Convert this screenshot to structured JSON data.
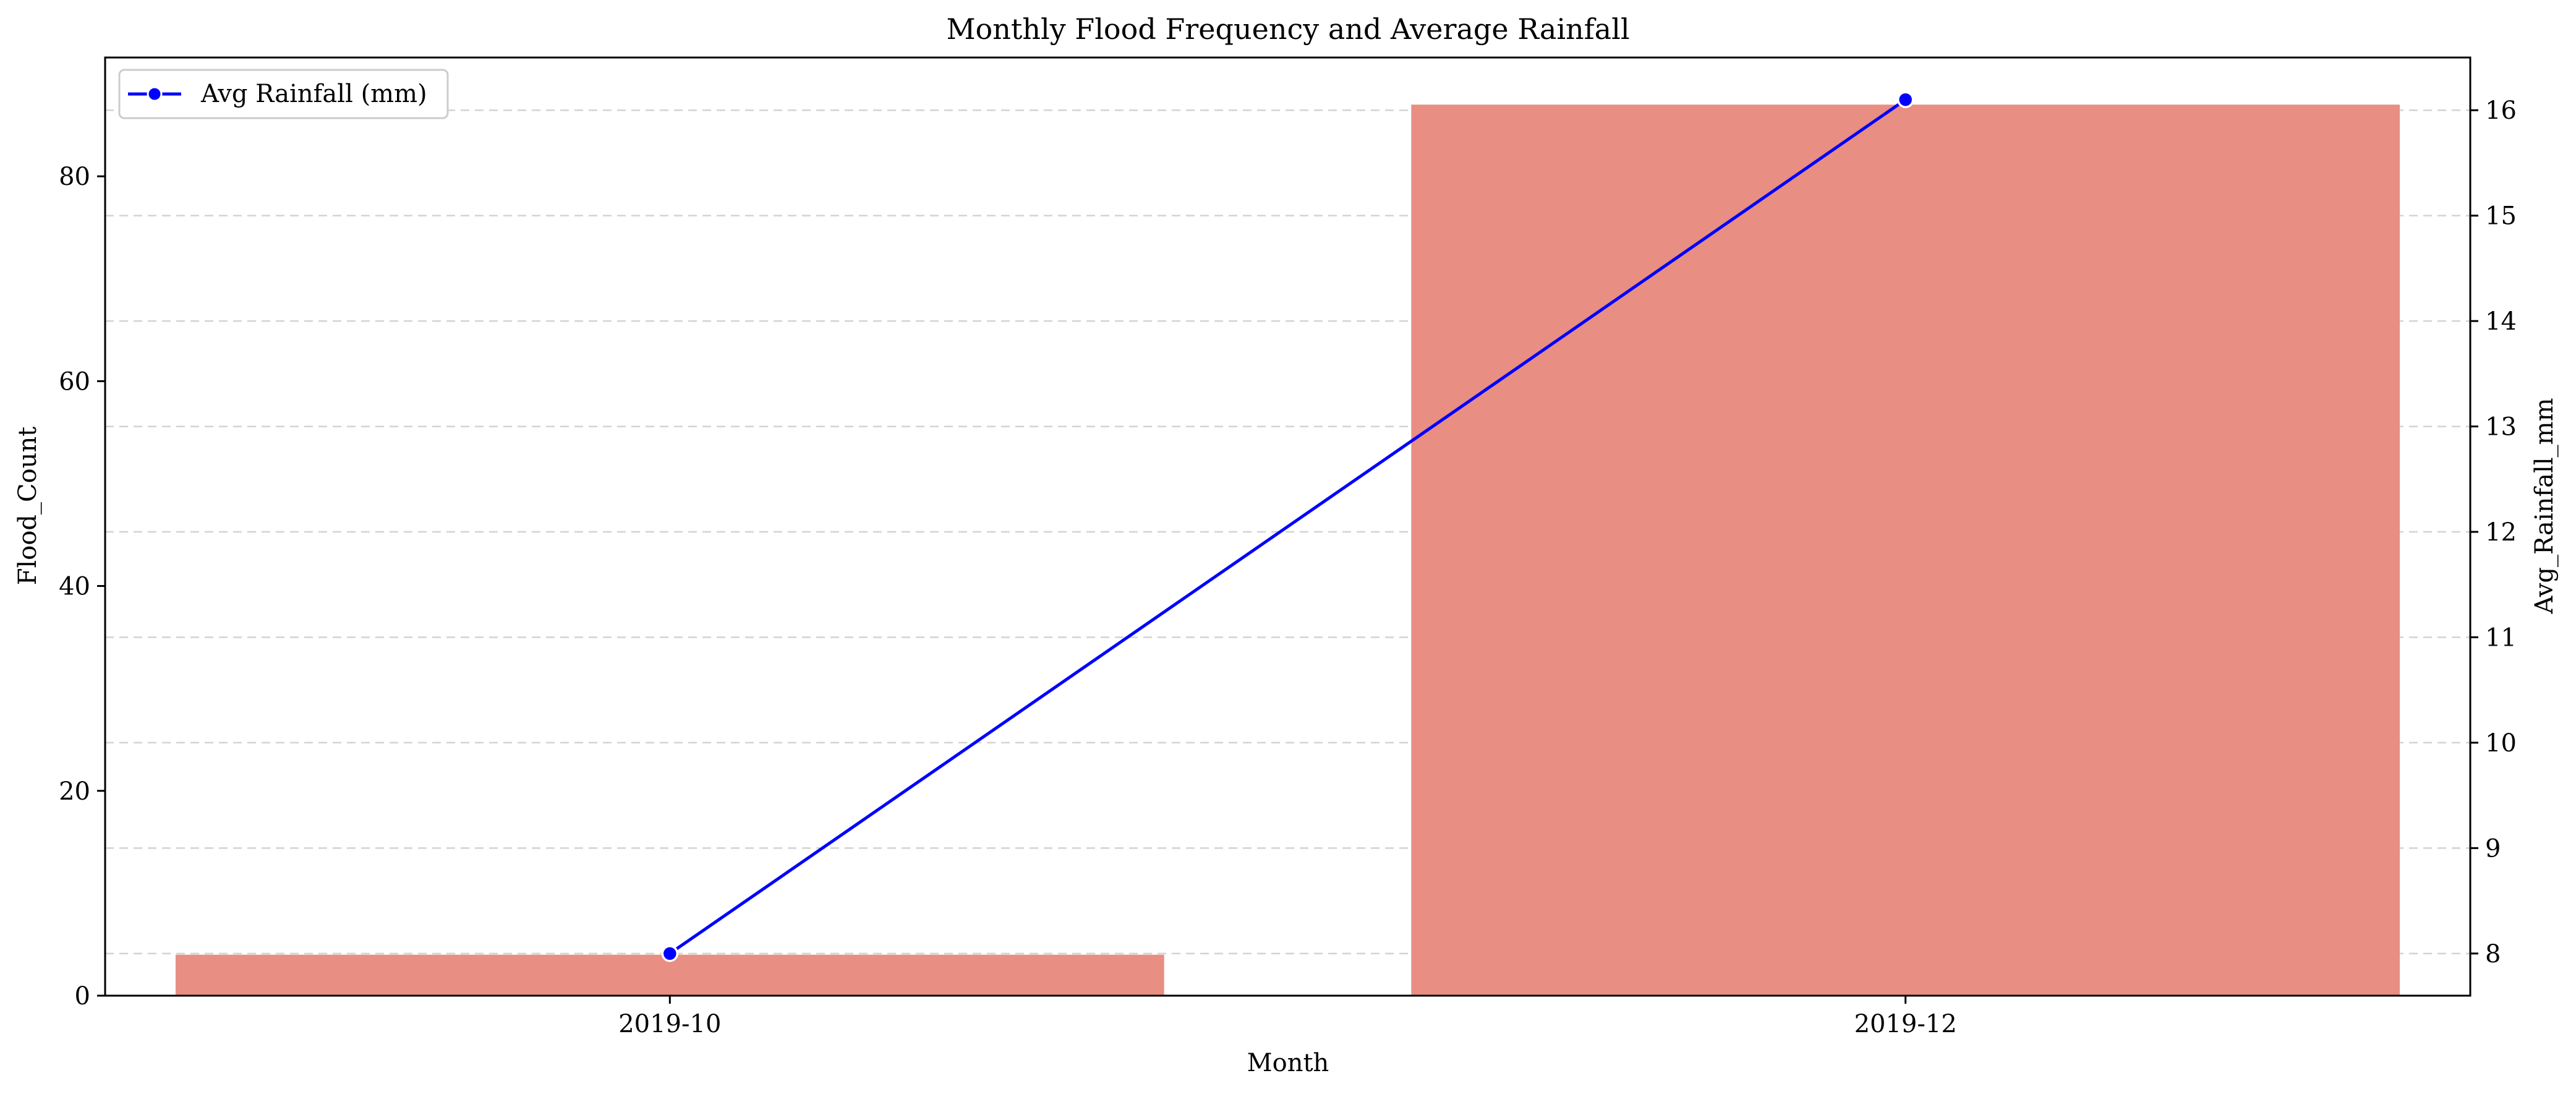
{
  "chart_data": {
    "type": "bar",
    "title": "Monthly Flood Frequency and Average Rainfall",
    "xlabel": "Month",
    "ylabel": "Flood_Count",
    "y2label": "Avg_Rainfall_mm",
    "categories": [
      "2019-10",
      "2019-12"
    ],
    "series": [
      {
        "type": "bar",
        "axis": "left",
        "values": [
          4,
          87
        ],
        "color": "#e88e82"
      },
      {
        "name": "Avg Rainfall (mm)",
        "type": "line",
        "axis": "right",
        "marker": "circle",
        "values": [
          8.0,
          16.1
        ],
        "color": "#0000ff"
      }
    ],
    "ylim": [
      0,
      91.6
    ],
    "yticks": [
      0,
      20,
      40,
      60,
      80
    ],
    "y2lim": [
      7.6,
      16.5
    ],
    "y2ticks": [
      8,
      9,
      10,
      11,
      12,
      13,
      14,
      15,
      16
    ],
    "grid": "horizontal dashed (right axis ticks)",
    "legend": "top-left"
  }
}
